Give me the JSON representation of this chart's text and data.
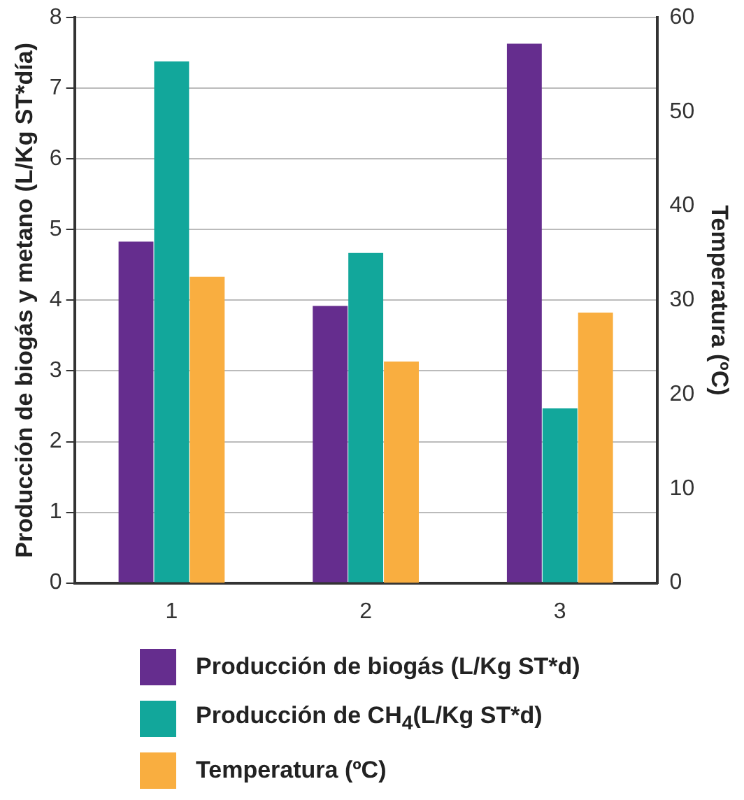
{
  "chart_data": {
    "type": "bar",
    "ylabel": "Producción de biogás y metano (L/Kg ST*día)",
    "y2label": "Temperatura (ºC)",
    "categories": [
      "1",
      "2",
      "3"
    ],
    "series": [
      {
        "name": "Producción de biogás (L/Kg ST*d)",
        "color": "#652d8e",
        "values": [
          4.83,
          3.92,
          7.63
        ]
      },
      {
        "name": "Producción de CH$_{4}$(L/Kg ST*d)",
        "color": "#12a79b",
        "values": [
          7.38,
          4.67,
          2.47
        ]
      },
      {
        "name": "Temperatura (ºC)",
        "color": "#f9ae40",
        "values": [
          32.5,
          23.5,
          28.7
        ],
        "axis": "y2"
      }
    ],
    "ylim": [
      0,
      8
    ],
    "yticks": [
      0,
      1,
      2,
      3,
      4,
      5,
      6,
      7,
      8
    ],
    "y2lim": [
      0,
      60
    ],
    "y2ticks": [
      0,
      10,
      20,
      30,
      40,
      50,
      60
    ],
    "grid": "y",
    "legend": "bottom"
  }
}
